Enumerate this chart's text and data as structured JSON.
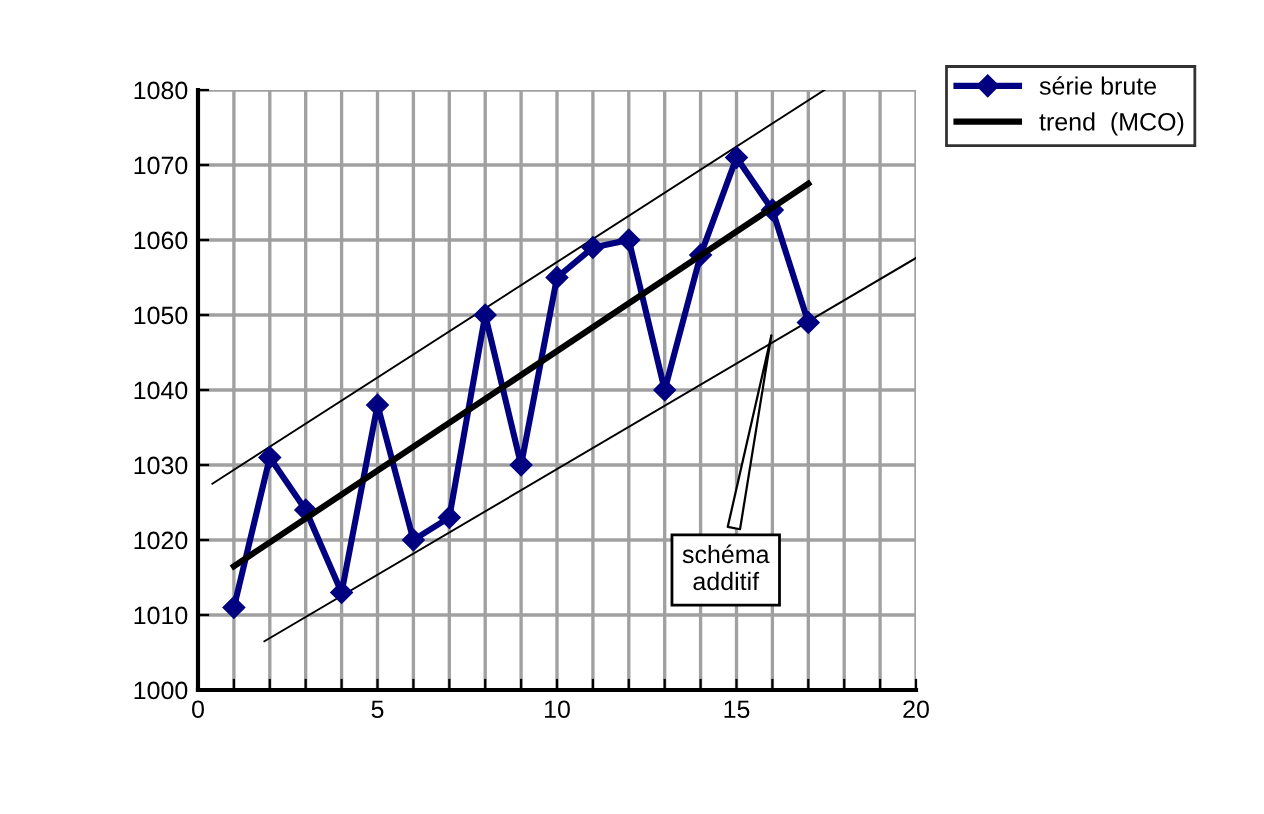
{
  "chart_data": {
    "type": "line",
    "x": [
      1,
      2,
      3,
      4,
      5,
      6,
      7,
      8,
      9,
      10,
      11,
      12,
      13,
      14,
      15,
      16,
      17
    ],
    "series": [
      {
        "name": "série brute",
        "color": "#000080",
        "marker": "diamond",
        "values": [
          1011,
          1031,
          1024,
          1013,
          1038,
          1020,
          1023,
          1050,
          1030,
          1055,
          1059,
          1060,
          1040,
          1058,
          1071,
          1064,
          1049
        ]
      },
      {
        "name": "trend  (MCO)",
        "color": "#000000",
        "marker": "none",
        "x": [
          1,
          17
        ],
        "values": [
          1016.5,
          1067.5
        ]
      },
      {
        "color": "#000000",
        "marker": "none",
        "x": [
          0.4,
          17.45
        ],
        "values": [
          1027.5,
          1080
        ]
      },
      {
        "color": "#000000",
        "marker": "none",
        "x": [
          1.85,
          20
        ],
        "values": [
          1006.5,
          1057.6
        ]
      }
    ],
    "xlim": [
      0,
      20
    ],
    "ylim": [
      1000,
      1080
    ],
    "xticks": [
      0,
      {
        "value": 1,
        "label": null
      },
      {
        "value": 2,
        "label": null
      },
      {
        "value": 3,
        "label": null
      },
      {
        "value": 4,
        "label": null
      },
      5,
      {
        "value": 6,
        "label": null
      },
      {
        "value": 7,
        "label": null
      },
      {
        "value": 8,
        "label": null
      },
      {
        "value": 9,
        "label": null
      },
      10,
      {
        "value": 11,
        "label": null
      },
      {
        "value": 12,
        "label": null
      },
      {
        "value": 13,
        "label": null
      },
      {
        "value": 14,
        "label": null
      },
      15,
      {
        "value": 16,
        "label": null
      },
      {
        "value": 17,
        "label": null
      },
      {
        "value": 18,
        "label": null
      },
      {
        "value": 19,
        "label": null
      },
      20
    ],
    "yticks": [
      1000,
      1010,
      1020,
      1030,
      1040,
      1050,
      1060,
      1070,
      1080
    ],
    "grid": true,
    "legend": "top right",
    "annotations": [
      {
        "text": "schéma\nadditif",
        "x": 16,
        "y": 1048
      }
    ]
  }
}
